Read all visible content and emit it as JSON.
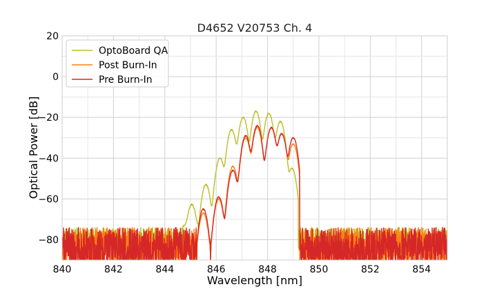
{
  "chart_data": {
    "type": "line",
    "title": "D4652 V20753 Ch. 4",
    "xlabel": "Wavelength [nm]",
    "ylabel": "Optical Power [dB]",
    "xlim": [
      840,
      855
    ],
    "ylim": [
      -90,
      20
    ],
    "xticks": [
      840,
      842,
      844,
      846,
      848,
      850,
      852,
      854
    ],
    "yticks": [
      20,
      0,
      -20,
      -40,
      -60,
      -80
    ],
    "xtick_labels": [
      "840",
      "842",
      "844",
      "846",
      "848",
      "850",
      "852",
      "854"
    ],
    "ytick_labels": [
      "20",
      "0",
      "−20",
      "−40",
      "−60",
      "−80"
    ],
    "grid": true,
    "legend_position": "top-left",
    "noise_floor_db": -80,
    "series": [
      {
        "name": "OptoBoard QA",
        "color": "#bcbd22",
        "peaks": [
          {
            "x": 845.05,
            "y": -63
          },
          {
            "x": 845.6,
            "y": -53
          },
          {
            "x": 846.15,
            "y": -40
          },
          {
            "x": 846.6,
            "y": -26
          },
          {
            "x": 847.05,
            "y": -20
          },
          {
            "x": 847.55,
            "y": -17
          },
          {
            "x": 848.05,
            "y": -18
          },
          {
            "x": 848.5,
            "y": -22
          },
          {
            "x": 848.95,
            "y": -45
          }
        ]
      },
      {
        "name": "Post Burn-In",
        "color": "#ff7f0e",
        "peaks": [
          {
            "x": 845.5,
            "y": -67
          },
          {
            "x": 846.1,
            "y": -60
          },
          {
            "x": 846.65,
            "y": -44
          },
          {
            "x": 847.15,
            "y": -30
          },
          {
            "x": 847.6,
            "y": -25
          },
          {
            "x": 848.15,
            "y": -25
          },
          {
            "x": 848.55,
            "y": -28
          },
          {
            "x": 849.0,
            "y": -33
          }
        ]
      },
      {
        "name": "Pre Burn-In",
        "color": "#d62728",
        "peaks": [
          {
            "x": 845.5,
            "y": -65
          },
          {
            "x": 846.1,
            "y": -59
          },
          {
            "x": 846.65,
            "y": -46
          },
          {
            "x": 847.15,
            "y": -29
          },
          {
            "x": 847.6,
            "y": -24
          },
          {
            "x": 848.15,
            "y": -25
          },
          {
            "x": 848.55,
            "y": -28
          },
          {
            "x": 849.0,
            "y": -30
          }
        ]
      }
    ]
  }
}
